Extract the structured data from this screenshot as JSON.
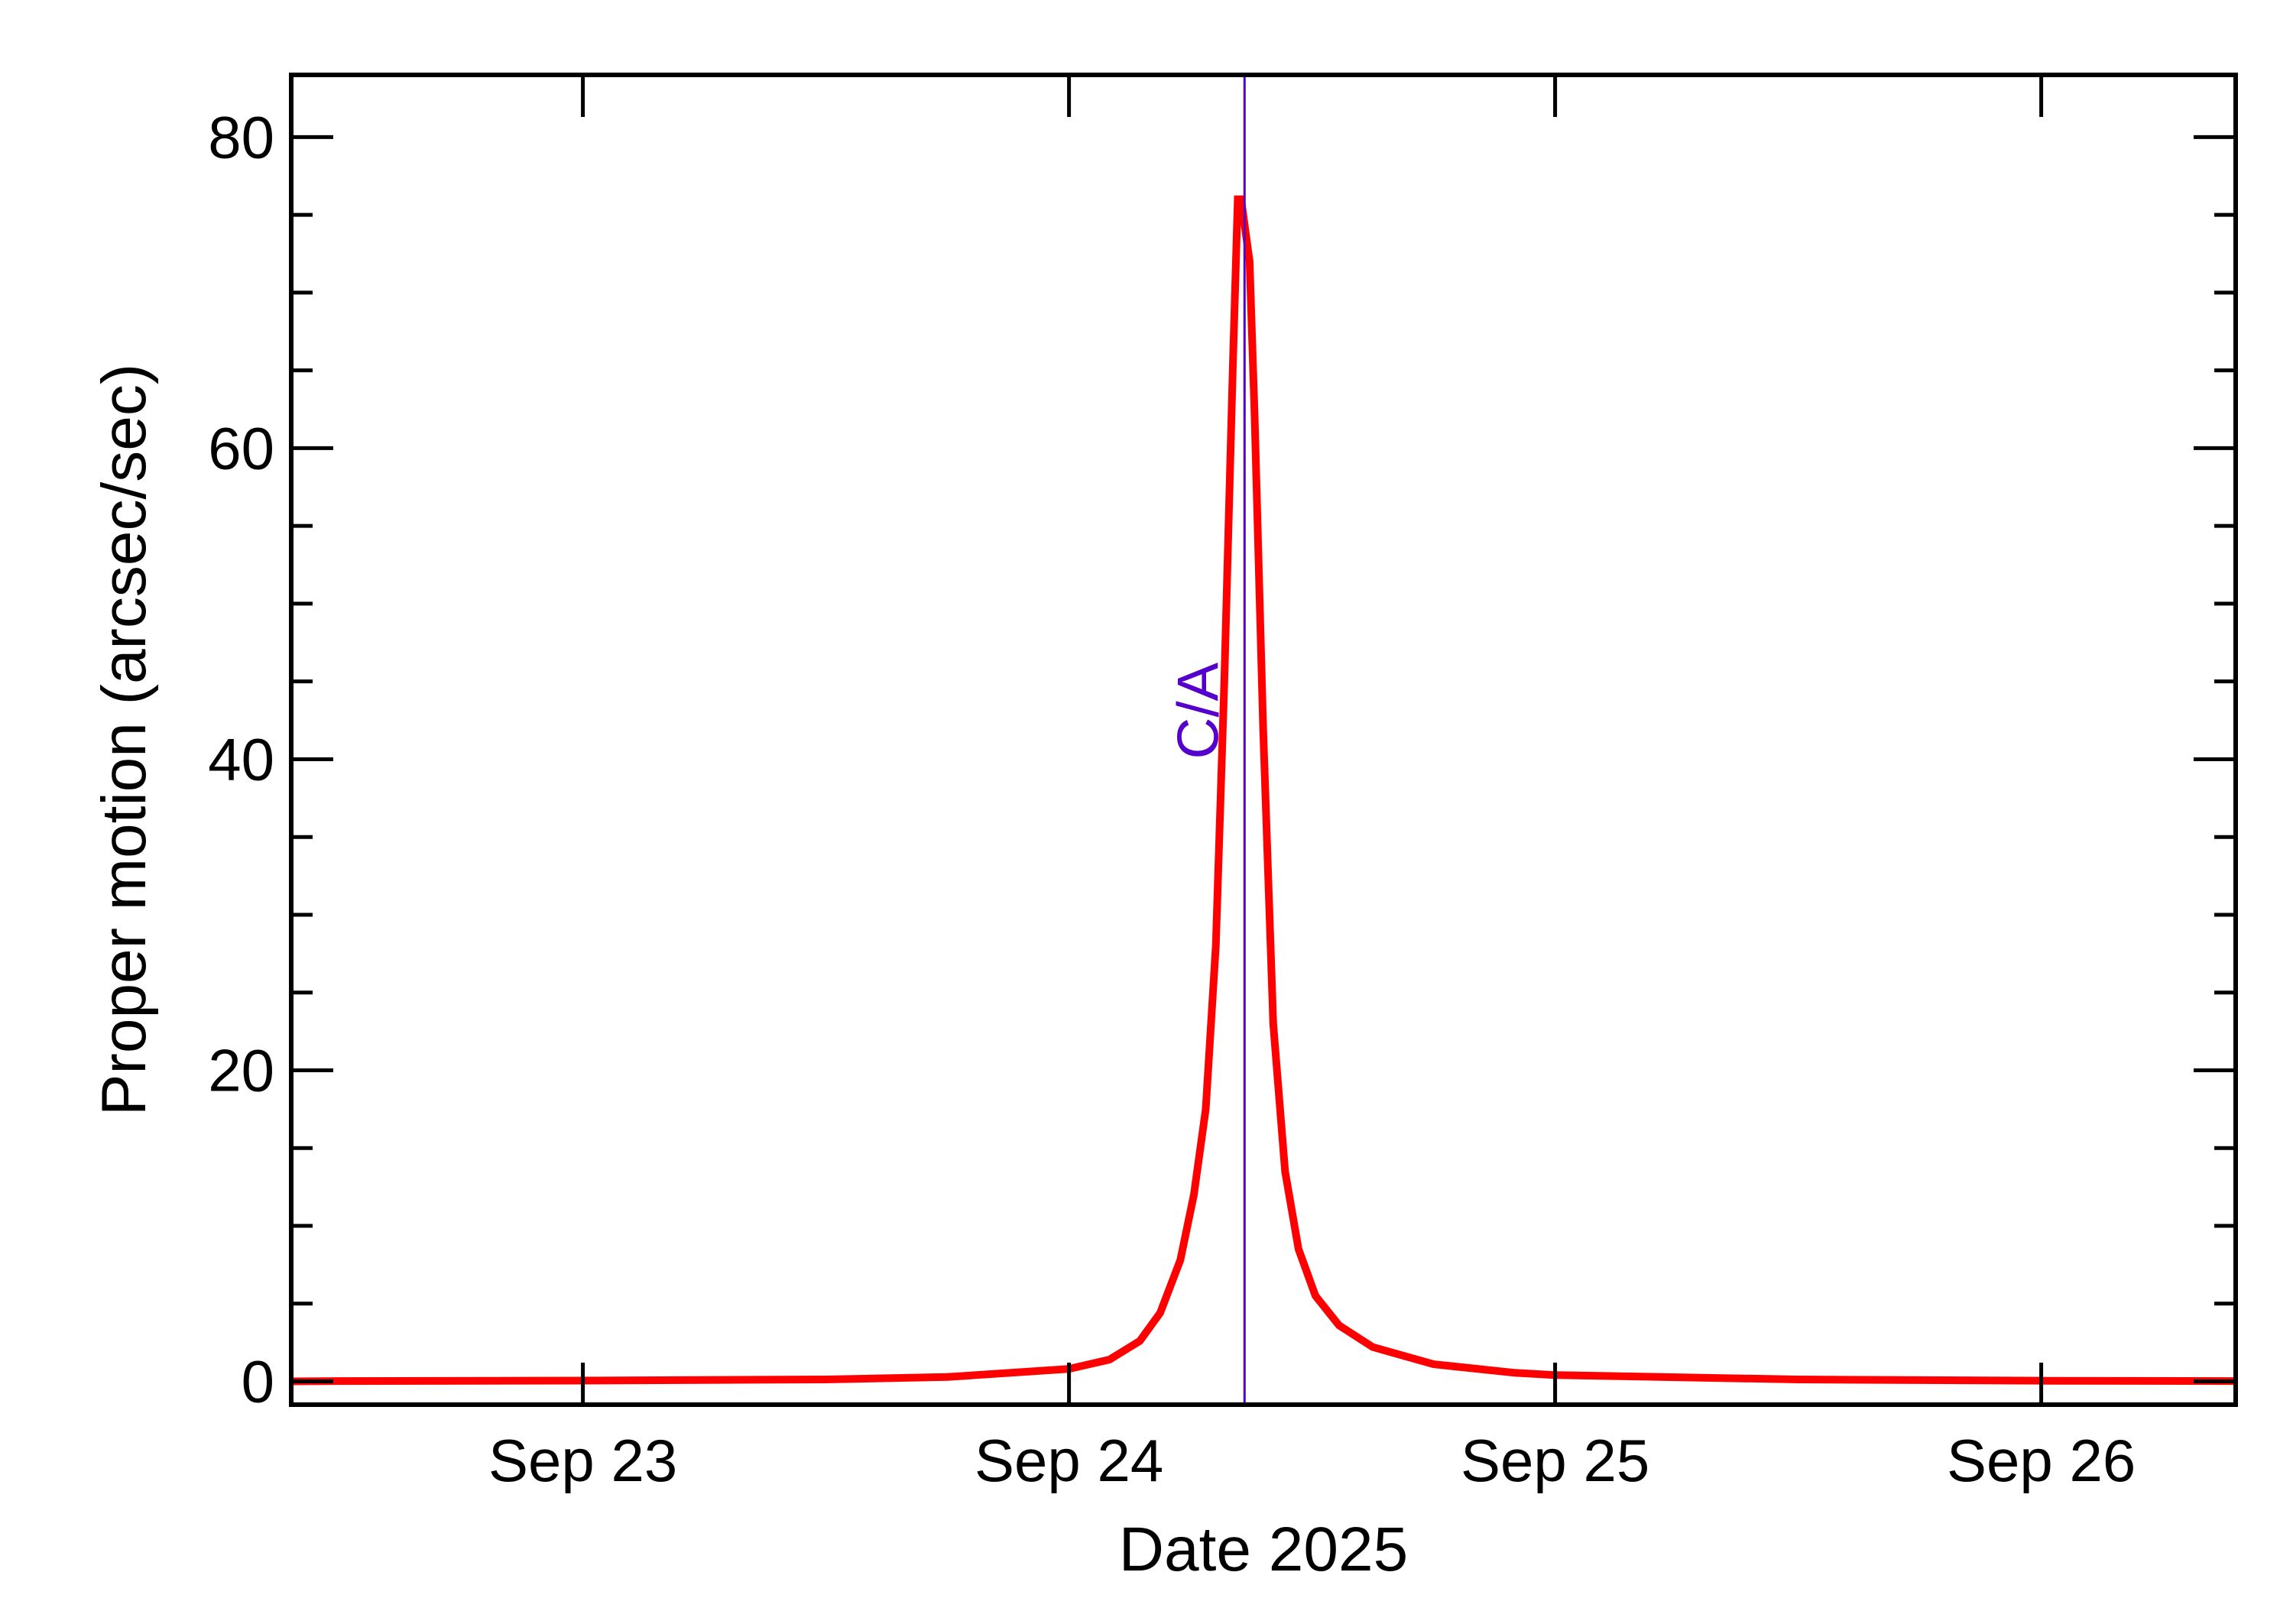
{
  "chart_data": {
    "type": "line",
    "title": "",
    "xlabel": "Date 2025",
    "ylabel": "Proper motion (arcsec/sec)",
    "x_is_date": true,
    "xlim": [
      "2025-09-22 09:36",
      "2025-09-26 09:36"
    ],
    "ylim": [
      -1.5,
      84
    ],
    "xticks": [
      {
        "x": "2025-09-23 00:00",
        "label": "Sep 23"
      },
      {
        "x": "2025-09-24 00:00",
        "label": "Sep 24"
      },
      {
        "x": "2025-09-25 00:00",
        "label": "Sep 25"
      },
      {
        "x": "2025-09-26 00:00",
        "label": "Sep 26"
      }
    ],
    "yticks": [
      {
        "y": 0,
        "label": "0"
      },
      {
        "y": 20,
        "label": "20"
      },
      {
        "y": 40,
        "label": "40"
      },
      {
        "y": 60,
        "label": "60"
      },
      {
        "y": 80,
        "label": "80"
      }
    ],
    "y_minor_step": 5,
    "grid": false,
    "legend": "none",
    "colors": {
      "series": "#ff0000",
      "annotation": "#5500cc",
      "axes": "#000000"
    },
    "series": [
      {
        "color": "#ff0000",
        "points": [
          {
            "x": "2025-09-22 09:36",
            "y": 0.0
          },
          {
            "x": "2025-09-22 12:00",
            "y": 0.02
          },
          {
            "x": "2025-09-23 00:00",
            "y": 0.05
          },
          {
            "x": "2025-09-23 12:00",
            "y": 0.12
          },
          {
            "x": "2025-09-23 18:00",
            "y": 0.28
          },
          {
            "x": "2025-09-24 00:00",
            "y": 0.8
          },
          {
            "x": "2025-09-24 02:00",
            "y": 1.4
          },
          {
            "x": "2025-09-24 03:30",
            "y": 2.6
          },
          {
            "x": "2025-09-24 04:30",
            "y": 4.4
          },
          {
            "x": "2025-09-24 05:30",
            "y": 7.8
          },
          {
            "x": "2025-09-24 06:10",
            "y": 12.0
          },
          {
            "x": "2025-09-24 06:45",
            "y": 17.5
          },
          {
            "x": "2025-09-24 07:15",
            "y": 28.0
          },
          {
            "x": "2025-09-24 07:40",
            "y": 45.0
          },
          {
            "x": "2025-09-24 08:05",
            "y": 65.0
          },
          {
            "x": "2025-09-24 08:20",
            "y": 76.0
          },
          {
            "x": "2025-09-24 08:30",
            "y": 76.0
          },
          {
            "x": "2025-09-24 08:55",
            "y": 72.0
          },
          {
            "x": "2025-09-24 09:10",
            "y": 62.0
          },
          {
            "x": "2025-09-24 09:35",
            "y": 42.0
          },
          {
            "x": "2025-09-24 10:05",
            "y": 23.0
          },
          {
            "x": "2025-09-24 10:40",
            "y": 13.5
          },
          {
            "x": "2025-09-24 11:20",
            "y": 8.5
          },
          {
            "x": "2025-09-24 12:10",
            "y": 5.5
          },
          {
            "x": "2025-09-24 13:20",
            "y": 3.6
          },
          {
            "x": "2025-09-24 15:00",
            "y": 2.2
          },
          {
            "x": "2025-09-24 18:00",
            "y": 1.1
          },
          {
            "x": "2025-09-24 22:00",
            "y": 0.55
          },
          {
            "x": "2025-09-25 00:00",
            "y": 0.4
          },
          {
            "x": "2025-09-25 12:00",
            "y": 0.12
          },
          {
            "x": "2025-09-26 00:00",
            "y": 0.04
          },
          {
            "x": "2025-09-26 09:36",
            "y": 0.02
          }
        ]
      }
    ],
    "annotations": [
      {
        "type": "vline",
        "x": "2025-09-24 08:40",
        "label": "C/A",
        "label_y": 40,
        "color": "#5500cc"
      }
    ]
  }
}
